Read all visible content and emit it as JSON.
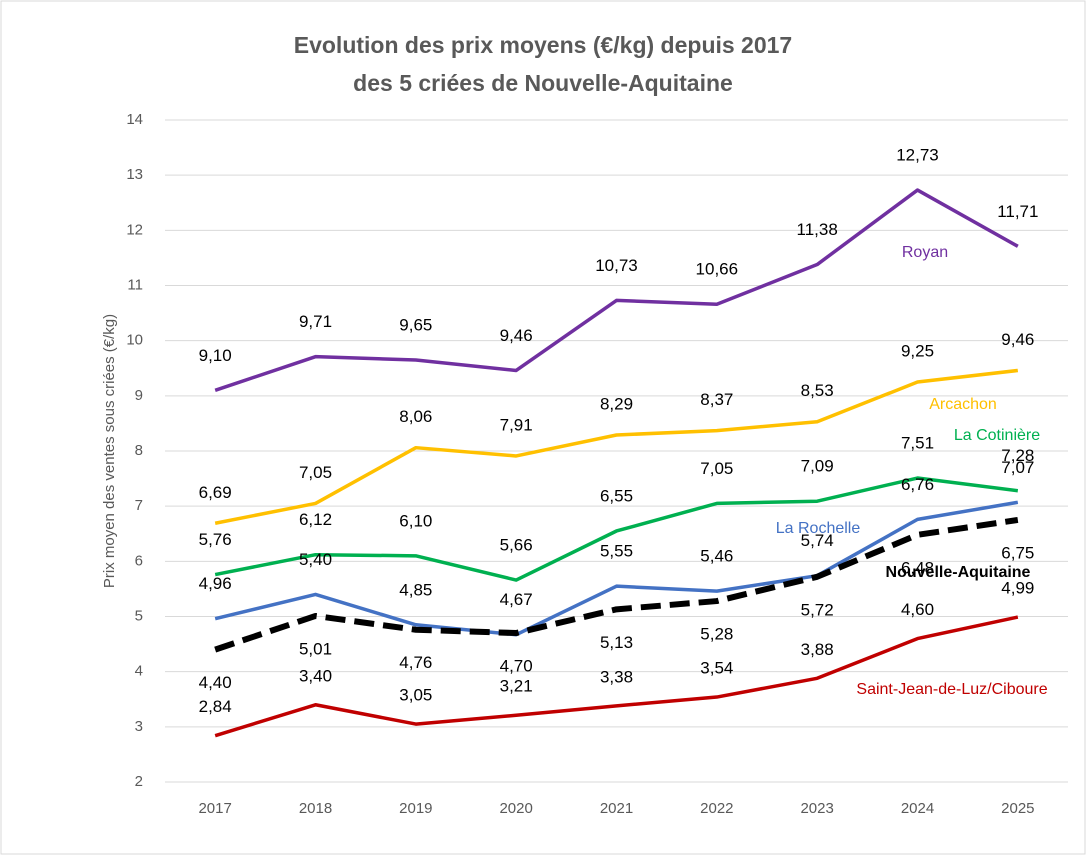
{
  "chart_data": {
    "type": "line",
    "title": [
      "Evolution des prix moyens (€/kg) depuis 2017",
      "des 5 criées de Nouvelle-Aquitaine"
    ],
    "y_label": "Prix moyen des ventes sous criées (€/kg)",
    "categories": [
      "2017",
      "2018",
      "2019",
      "2020",
      "2021",
      "2022",
      "2023",
      "2024",
      "2025"
    ],
    "ylim": [
      2,
      14
    ],
    "yticks": [
      2,
      3,
      4,
      5,
      6,
      7,
      8,
      9,
      10,
      11,
      12,
      13,
      14
    ],
    "grid": true,
    "series": [
      {
        "name": "Royan",
        "color": "#7030a0",
        "values": [
          9.1,
          9.71,
          9.65,
          9.46,
          10.73,
          10.66,
          11.38,
          12.73,
          11.71
        ],
        "value_labels": [
          "9,10",
          "9,71",
          "9,65",
          "9,46",
          "10,73",
          "10,66",
          "11,38",
          "12,73",
          "11,71"
        ]
      },
      {
        "name": "Arcachon",
        "color": "#ffc000",
        "values": [
          6.69,
          7.05,
          8.06,
          7.91,
          8.29,
          8.37,
          8.53,
          9.25,
          9.46
        ],
        "value_labels": [
          "6,69",
          "7,05",
          "8,06",
          "7,91",
          "8,29",
          "8,37",
          "8,53",
          "9,25",
          "9,46"
        ]
      },
      {
        "name": "La Cotinière",
        "color": "#00b050",
        "values": [
          5.76,
          6.12,
          6.1,
          5.66,
          6.55,
          7.05,
          7.09,
          7.51,
          7.28
        ],
        "value_labels": [
          "5,76",
          "6,12",
          "6,10",
          "5,66",
          "6,55",
          "7,05",
          "7,09",
          "7,51",
          "7,28"
        ]
      },
      {
        "name": "La Rochelle",
        "color": "#4472c4",
        "values": [
          4.96,
          5.4,
          4.85,
          4.67,
          5.55,
          5.46,
          5.74,
          6.76,
          7.07
        ],
        "value_labels": [
          "4,96",
          "5,40",
          "4,85",
          "4,67",
          "5,55",
          "5,46",
          "5,74",
          "6,76",
          "7,07"
        ]
      },
      {
        "name": "Nouvelle-Aquitaine",
        "color": "#000000",
        "dashed": true,
        "values": [
          4.4,
          5.01,
          4.76,
          4.7,
          5.13,
          5.28,
          5.72,
          6.48,
          6.75
        ],
        "value_labels": [
          "4,40",
          "5,01",
          "4,76",
          "4,70",
          "5,13",
          "5,28",
          "5,72",
          "6,48",
          "6,75"
        ]
      },
      {
        "name": "Saint-Jean-de-Luz/Ciboure",
        "color": "#c00000",
        "values": [
          2.84,
          3.4,
          3.05,
          3.21,
          3.38,
          3.54,
          3.88,
          4.6,
          4.99
        ],
        "value_labels": [
          "2,84",
          "3,40",
          "3,05",
          "3,21",
          "3,38",
          "3,54",
          "3,88",
          "4,60",
          "4,99"
        ]
      }
    ]
  }
}
